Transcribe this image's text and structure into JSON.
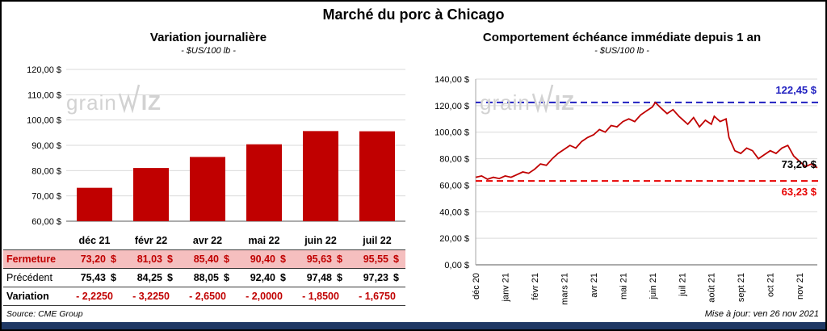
{
  "page": {
    "title": "Marché du porc à Chicago",
    "source": "Source: CME Group",
    "updated": "Mise à jour: ven 26 nov 2021",
    "watermark": {
      "prefix": "grain",
      "suffix": "IZ"
    }
  },
  "colors": {
    "accent_red": "#C00000",
    "max_blue": "#2020C0",
    "support_red": "#E80000",
    "table_highlight": "#F5BFBF",
    "bottom_bar": "#1F3864"
  },
  "table": {
    "rows": [
      {
        "id": "fermeture",
        "label": "Fermeture",
        "suffix": "$",
        "values": [
          "73,20",
          "81,03",
          "85,40",
          "90,40",
          "95,63",
          "95,55"
        ]
      },
      {
        "id": "precedent",
        "label": "Précédent",
        "suffix": "$",
        "values": [
          "75,43",
          "84,25",
          "88,05",
          "92,40",
          "97,48",
          "97,23"
        ]
      },
      {
        "id": "variation",
        "label": "Variation",
        "suffix": "",
        "values": [
          "- 2,2250",
          "- 3,2250",
          "- 2,6500",
          "- 2,0000",
          "- 1,8500",
          "- 1,6750"
        ]
      }
    ]
  },
  "chart_data": [
    {
      "type": "bar",
      "title": "Variation  journalière",
      "subtitle": "- $US/100 lb -",
      "categories": [
        "déc 21",
        "févr 22",
        "avr 22",
        "mai 22",
        "juin 22",
        "juil 22"
      ],
      "values": [
        73.2,
        81.03,
        85.4,
        90.4,
        95.63,
        95.55
      ],
      "ylim": [
        60,
        120
      ],
      "yticks": [
        60,
        70,
        80,
        90,
        100,
        110,
        120
      ],
      "ytick_labels": [
        "60,00 $",
        "70,00 $",
        "80,00 $",
        "90,00 $",
        "100,00 $",
        "110,00 $",
        "120,00 $"
      ],
      "bar_color": "#C00000",
      "grid": true,
      "legend": false
    },
    {
      "type": "line",
      "title": "Comportement  échéance  immédiate  depuis 1 an",
      "subtitle": "- $US/100 lb -",
      "x_range": [
        0,
        11.6
      ],
      "x_months": [
        0,
        0.2,
        0.4,
        0.6,
        0.8,
        1.0,
        1.2,
        1.4,
        1.6,
        1.8,
        2.0,
        2.2,
        2.4,
        2.6,
        2.8,
        3.0,
        3.2,
        3.4,
        3.6,
        3.8,
        4.0,
        4.2,
        4.4,
        4.6,
        4.8,
        5.0,
        5.2,
        5.4,
        5.6,
        5.8,
        6.0,
        6.1,
        6.3,
        6.5,
        6.7,
        6.9,
        7.0,
        7.2,
        7.4,
        7.6,
        7.8,
        8.0,
        8.1,
        8.3,
        8.5,
        8.6,
        8.8,
        9.0,
        9.2,
        9.4,
        9.6,
        9.8,
        10.0,
        10.2,
        10.4,
        10.6,
        10.8,
        11.0,
        11.2,
        11.4,
        11.6
      ],
      "values": [
        66,
        67,
        64.5,
        66,
        65,
        67,
        66,
        68,
        70,
        69,
        72,
        76,
        75,
        80,
        84,
        87,
        90,
        88,
        93,
        96,
        98,
        102,
        100,
        105,
        104,
        108,
        110,
        108,
        113,
        116,
        119,
        122.4,
        118,
        114,
        117,
        112,
        110,
        106,
        111,
        104,
        109,
        106,
        112,
        108,
        110,
        96,
        86,
        84,
        88,
        86,
        80,
        83,
        86,
        84,
        88,
        90,
        82,
        78,
        74,
        76,
        73.2
      ],
      "xtick_positions": [
        0,
        1,
        2,
        3,
        4,
        5,
        6,
        7,
        8,
        9,
        10,
        11
      ],
      "xtick_labels": [
        "déc 20",
        "janv 21",
        "févr 21",
        "mars 21",
        "avr 21",
        "mai 21",
        "juin 21",
        "juil 21",
        "août 21",
        "sept 21",
        "oct 21",
        "nov 21"
      ],
      "ylim": [
        0,
        140
      ],
      "yticks": [
        0,
        20,
        40,
        60,
        80,
        100,
        120,
        140
      ],
      "ytick_labels": [
        "0,00 $",
        "20,00 $",
        "40,00 $",
        "60,00 $",
        "80,00 $",
        "100,00 $",
        "120,00 $",
        "140,00 $"
      ],
      "line_color": "#C00000",
      "grid": true,
      "legend": false,
      "reference_lines": [
        {
          "value": 122.45,
          "label": "122,45 $",
          "color": "#2020C0",
          "style": "dashed"
        },
        {
          "value": 63.23,
          "label": "63,23 $",
          "color": "#E80000",
          "style": "dashed"
        }
      ],
      "end_label": {
        "value": 73.2,
        "label": "73,20 $",
        "color": "#000000"
      }
    }
  ]
}
